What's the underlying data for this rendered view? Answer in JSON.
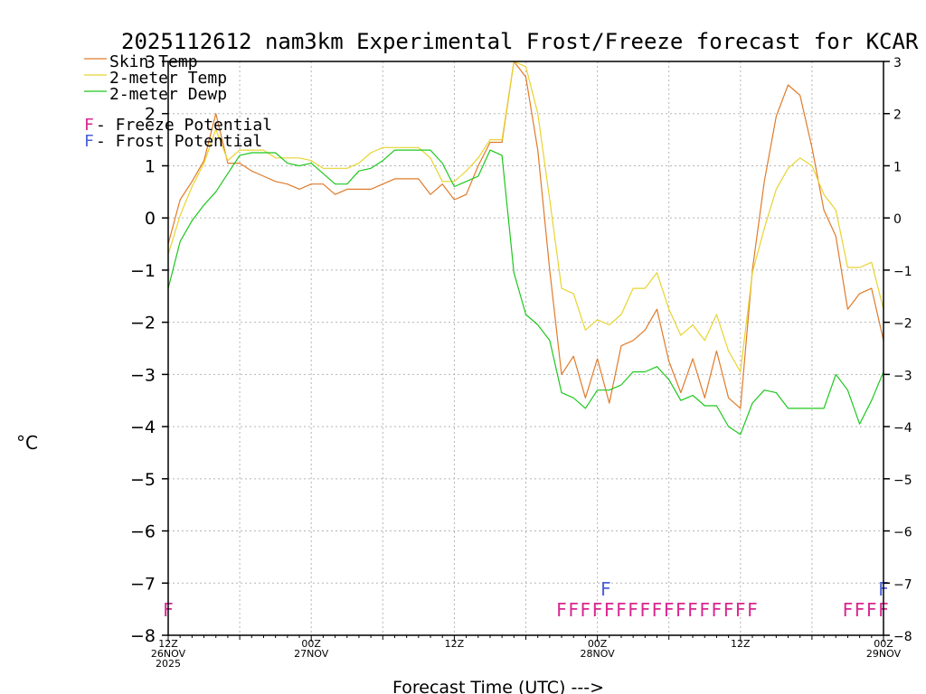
{
  "chart_data": {
    "type": "line",
    "title": "2025112612 nam3km Experimental Frost/Freeze forecast for KCAR",
    "ylabel": "°C",
    "xlabel": "Forecast Time (UTC) --->",
    "ylim": [
      -8,
      3
    ],
    "yticks": [
      3,
      2,
      1,
      0,
      -1,
      -2,
      -3,
      -4,
      -5,
      -6,
      -7,
      -8
    ],
    "ytick_labels_left": [
      "3",
      "2",
      "1",
      "0",
      "−1",
      "−2",
      "−3",
      "−4",
      "−5",
      "−6",
      "−7",
      "−8"
    ],
    "ytick_labels_right": [
      "3",
      "2",
      "1",
      "0",
      "−1",
      "−2",
      "−3",
      "−4",
      "−5",
      "−6",
      "−7",
      "−8"
    ],
    "xlim": [
      0,
      60
    ],
    "xticks": [
      {
        "hour": 0,
        "lines": [
          "12Z",
          "26NOV",
          "2025"
        ]
      },
      {
        "hour": 12,
        "lines": [
          "00Z",
          "27NOV"
        ]
      },
      {
        "hour": 24,
        "lines": [
          "12Z"
        ]
      },
      {
        "hour": 36,
        "lines": [
          "00Z",
          "28NOV"
        ]
      },
      {
        "hour": 48,
        "lines": [
          "12Z"
        ]
      },
      {
        "hour": 60,
        "lines": [
          "00Z",
          "29NOV"
        ]
      }
    ],
    "grid": true,
    "hours": [
      0,
      1,
      2,
      3,
      4,
      5,
      6,
      7,
      8,
      9,
      10,
      11,
      12,
      13,
      14,
      15,
      16,
      17,
      18,
      19,
      20,
      21,
      22,
      23,
      24,
      25,
      26,
      27,
      28,
      29,
      30,
      31,
      32,
      33,
      34,
      35,
      36,
      37,
      38,
      39,
      40,
      41,
      42,
      43,
      44,
      45,
      46,
      47,
      48,
      49,
      50,
      51,
      52,
      53,
      54,
      55,
      56,
      57,
      58,
      59,
      60
    ],
    "series": [
      {
        "name": "Skin Temp",
        "color": "#e07b2a",
        "values": [
          -0.5,
          0.35,
          0.7,
          1.1,
          2.0,
          1.05,
          1.05,
          0.9,
          0.8,
          0.7,
          0.65,
          0.55,
          0.65,
          0.65,
          0.45,
          0.55,
          0.55,
          0.55,
          0.65,
          0.75,
          0.75,
          0.75,
          0.45,
          0.65,
          0.35,
          0.45,
          1.0,
          1.45,
          1.45,
          3.0,
          2.7,
          1.3,
          -1.0,
          -3.0,
          -2.65,
          -3.45,
          -2.7,
          -3.55,
          -2.45,
          -2.35,
          -2.15,
          -1.75,
          -2.75,
          -3.35,
          -2.7,
          -3.45,
          -2.55,
          -3.45,
          -3.65,
          -1.0,
          0.7,
          1.95,
          2.55,
          2.35,
          1.35,
          0.15,
          -0.35,
          -1.75,
          -1.45,
          -1.35,
          -2.35
        ]
      },
      {
        "name": "2-meter Temp",
        "color": "#e8d430",
        "values": [
          -0.7,
          0.05,
          0.6,
          1.05,
          1.7,
          1.1,
          1.3,
          1.3,
          1.3,
          1.15,
          1.15,
          1.15,
          1.1,
          0.95,
          0.95,
          0.95,
          1.05,
          1.25,
          1.35,
          1.35,
          1.35,
          1.35,
          1.15,
          0.7,
          0.7,
          0.9,
          1.15,
          1.5,
          1.5,
          3.0,
          2.9,
          2.0,
          0.35,
          -1.35,
          -1.45,
          -2.15,
          -1.95,
          -2.05,
          -1.85,
          -1.35,
          -1.35,
          -1.05,
          -1.75,
          -2.25,
          -2.05,
          -2.35,
          -1.85,
          -2.55,
          -2.95,
          -1.05,
          -0.2,
          0.55,
          0.95,
          1.15,
          1.0,
          0.45,
          0.15,
          -0.95,
          -0.95,
          -0.85,
          -1.75
        ]
      },
      {
        "name": "2-meter Dewp",
        "color": "#1ec81e",
        "values": [
          -1.35,
          -0.45,
          -0.05,
          0.25,
          0.5,
          0.85,
          1.2,
          1.25,
          1.25,
          1.25,
          1.05,
          1.0,
          1.05,
          0.85,
          0.65,
          0.65,
          0.9,
          0.95,
          1.1,
          1.3,
          1.3,
          1.3,
          1.3,
          1.05,
          0.6,
          0.7,
          0.8,
          1.3,
          1.2,
          -1.05,
          -1.85,
          -2.05,
          -2.35,
          -3.35,
          -3.45,
          -3.65,
          -3.3,
          -3.3,
          -3.2,
          -2.95,
          -2.95,
          -2.85,
          -3.1,
          -3.5,
          -3.4,
          -3.6,
          -3.6,
          -4.0,
          -4.15,
          -3.55,
          -3.3,
          -3.35,
          -3.65,
          -3.65,
          -3.65,
          -3.65,
          -3.0,
          -3.3,
          -3.95,
          -3.5,
          -2.95
        ]
      }
    ],
    "legend": {
      "placement": "top-left",
      "items": [
        {
          "label": "Skin Temp",
          "color": "#e07b2a"
        },
        {
          "label": "2-meter Temp",
          "color": "#e8d430"
        },
        {
          "label": "2-meter Dewp",
          "color": "#1ec81e"
        }
      ],
      "potential_items": [
        {
          "symbol": "F",
          "label": " - Freeze Potential",
          "color": "#d9268f"
        },
        {
          "symbol": "F",
          "label": " - Frost Potential",
          "color": "#4a5fd8"
        }
      ]
    },
    "frost_flags": {
      "symbol": "F",
      "color": "#4a5fd8",
      "y": -7.1,
      "hours": [
        36.7,
        60
      ]
    },
    "freeze_flags": {
      "symbol": "F",
      "color": "#d9268f",
      "y": -7.5,
      "hours": [
        0,
        33,
        34,
        35,
        36,
        37,
        38,
        39,
        40,
        41,
        42,
        43,
        44,
        45,
        46,
        47,
        48,
        49,
        57,
        58,
        59,
        60
      ]
    }
  }
}
